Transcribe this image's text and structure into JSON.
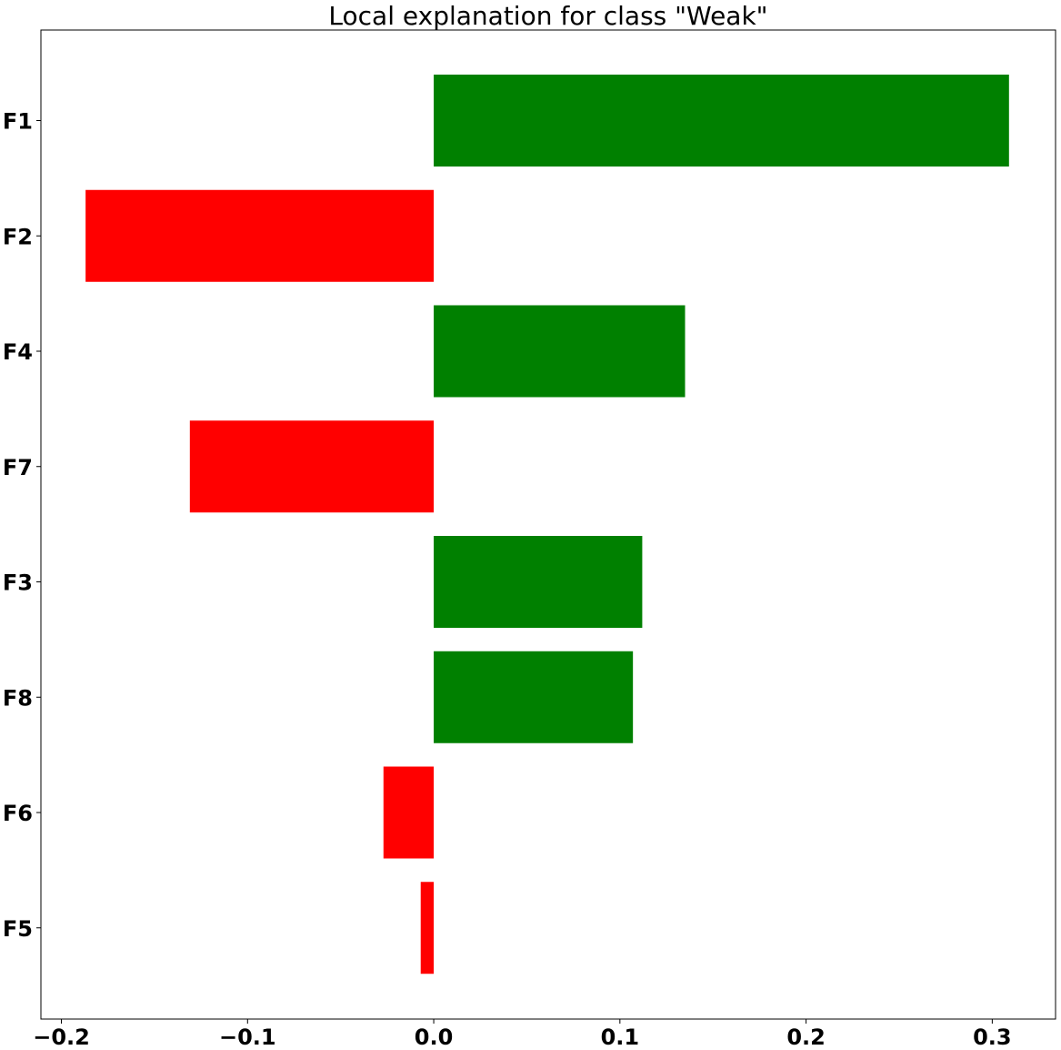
{
  "chart_data": {
    "type": "bar",
    "orientation": "horizontal",
    "title": "Local explanation for class \"Weak\"",
    "xlabel": "",
    "ylabel": "",
    "categories": [
      "F1",
      "F2",
      "F4",
      "F7",
      "F3",
      "F8",
      "F6",
      "F5"
    ],
    "values": [
      0.309,
      -0.187,
      0.135,
      -0.131,
      0.112,
      0.107,
      -0.027,
      -0.007
    ],
    "xlim": [
      -0.211,
      0.334
    ],
    "xticks": [
      -0.2,
      -0.1,
      0.0,
      0.1,
      0.2,
      0.3
    ],
    "xtick_labels": [
      "−0.2",
      "−0.1",
      "0.0",
      "0.1",
      "0.2",
      "0.3"
    ],
    "grid": false,
    "legend": "none",
    "colors": {
      "positive": "#008000",
      "negative": "#ff0000",
      "axes": "#000000",
      "background": "#ffffff"
    }
  }
}
